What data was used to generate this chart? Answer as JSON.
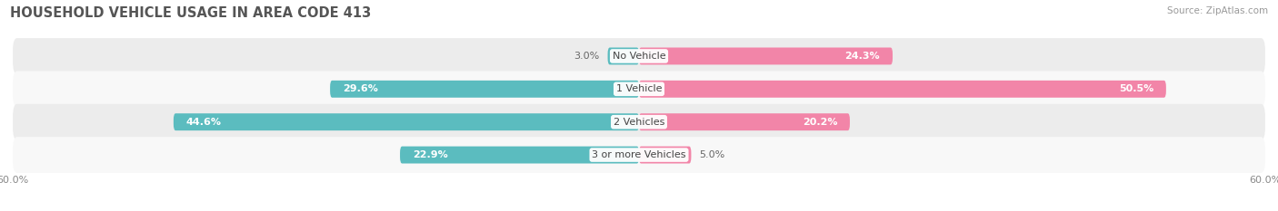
{
  "title": "HOUSEHOLD VEHICLE USAGE IN AREA CODE 413",
  "source": "Source: ZipAtlas.com",
  "categories": [
    "No Vehicle",
    "1 Vehicle",
    "2 Vehicles",
    "3 or more Vehicles"
  ],
  "owner_values": [
    3.0,
    29.6,
    44.6,
    22.9
  ],
  "renter_values": [
    24.3,
    50.5,
    20.2,
    5.0
  ],
  "owner_color": "#5bbcbf",
  "renter_color": "#f285a8",
  "background_row_colors": [
    "#ececec",
    "#f8f8f8",
    "#ececec",
    "#f8f8f8"
  ],
  "xlim": 60.0,
  "title_fontsize": 10.5,
  "source_fontsize": 7.5,
  "label_fontsize": 8.0,
  "bar_height": 0.52,
  "figsize": [
    14.06,
    2.33
  ],
  "dpi": 100,
  "owner_label_threshold": 10.0,
  "renter_label_threshold": 10.0
}
